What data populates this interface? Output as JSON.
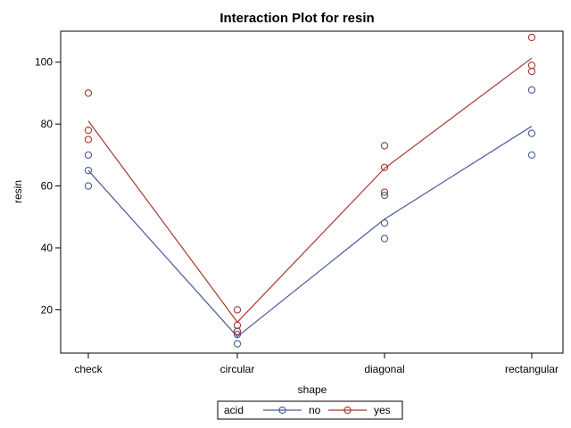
{
  "chart_data": {
    "type": "scatter",
    "title": "Interaction Plot for resin",
    "xlabel": "shape",
    "ylabel": "resin",
    "categories": [
      "check",
      "circular",
      "diagonal",
      "rectangular"
    ],
    "ylim": [
      6,
      110
    ],
    "yticks": [
      20,
      40,
      60,
      80,
      100
    ],
    "grid": false,
    "legend": {
      "title": "acid",
      "position": "bottom-center"
    },
    "series": [
      {
        "name": "no",
        "color": "#4a5a96",
        "points": [
          {
            "x": "check",
            "y": 70
          },
          {
            "x": "check",
            "y": 65
          },
          {
            "x": "check",
            "y": 60
          },
          {
            "x": "circular",
            "y": 13
          },
          {
            "x": "circular",
            "y": 12
          },
          {
            "x": "circular",
            "y": 9
          },
          {
            "x": "diagonal",
            "y": 57
          },
          {
            "x": "diagonal",
            "y": 48
          },
          {
            "x": "diagonal",
            "y": 43
          },
          {
            "x": "rectangular",
            "y": 91
          },
          {
            "x": "rectangular",
            "y": 77
          },
          {
            "x": "rectangular",
            "y": 70
          }
        ],
        "means": [
          65,
          11.3,
          49.3,
          79.3
        ]
      },
      {
        "name": "yes",
        "color": "#a6372d",
        "points": [
          {
            "x": "check",
            "y": 90
          },
          {
            "x": "check",
            "y": 78
          },
          {
            "x": "check",
            "y": 75
          },
          {
            "x": "circular",
            "y": 20
          },
          {
            "x": "circular",
            "y": 15
          },
          {
            "x": "circular",
            "y": 13
          },
          {
            "x": "diagonal",
            "y": 73
          },
          {
            "x": "diagonal",
            "y": 66
          },
          {
            "x": "diagonal",
            "y": 58
          },
          {
            "x": "rectangular",
            "y": 108
          },
          {
            "x": "rectangular",
            "y": 99
          },
          {
            "x": "rectangular",
            "y": 97
          }
        ],
        "means": [
          81,
          16,
          65.7,
          101.3
        ]
      }
    ]
  }
}
